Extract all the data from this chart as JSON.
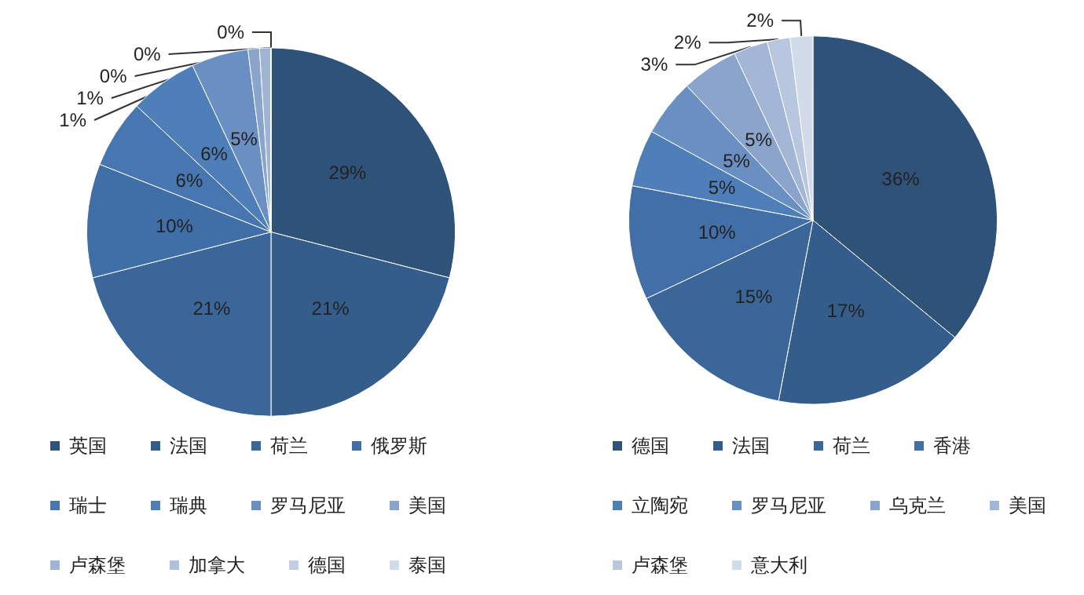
{
  "chart_data": [
    {
      "type": "pie",
      "categories": [
        "英国",
        "法国",
        "荷兰",
        "俄罗斯",
        "瑞士",
        "瑞典",
        "罗马尼亚",
        "美国",
        "卢森堡",
        "加拿大",
        "德国",
        "泰国"
      ],
      "values": [
        29,
        21,
        21,
        10,
        6,
        6,
        5,
        1,
        1,
        0,
        0,
        0
      ],
      "colors": [
        "#2f5279",
        "#345d8b",
        "#3a6699",
        "#3f6fa6",
        "#4776b0",
        "#4f7fb8",
        "#6a8fc2",
        "#8aa4cc",
        "#9fb3d4",
        "#b0c1dc",
        "#c2cfe3",
        "#d1dbea"
      ],
      "legend": "bottom",
      "value_labels": [
        "29%",
        "21%",
        "21%",
        "10%",
        "6%",
        "6%",
        "5%",
        "1%",
        "1%",
        "0%",
        "0%",
        "0%"
      ]
    },
    {
      "type": "pie",
      "categories": [
        "德国",
        "法国",
        "荷兰",
        "香港",
        "立陶宛",
        "罗马尼亚",
        "乌克兰",
        "美国",
        "卢森堡",
        "意大利"
      ],
      "values": [
        36,
        17,
        15,
        10,
        5,
        5,
        5,
        3,
        2,
        2
      ],
      "colors": [
        "#2f5279",
        "#345d8b",
        "#3a6699",
        "#426fa8",
        "#4f7fb8",
        "#6a8fc2",
        "#8aa4cc",
        "#a3b6d6",
        "#b8c6df",
        "#d1dbea"
      ],
      "legend": "bottom",
      "value_labels": [
        "36%",
        "17%",
        "15%",
        "10%",
        "5%",
        "5%",
        "5%",
        "3%",
        "2%",
        "2%"
      ]
    }
  ]
}
